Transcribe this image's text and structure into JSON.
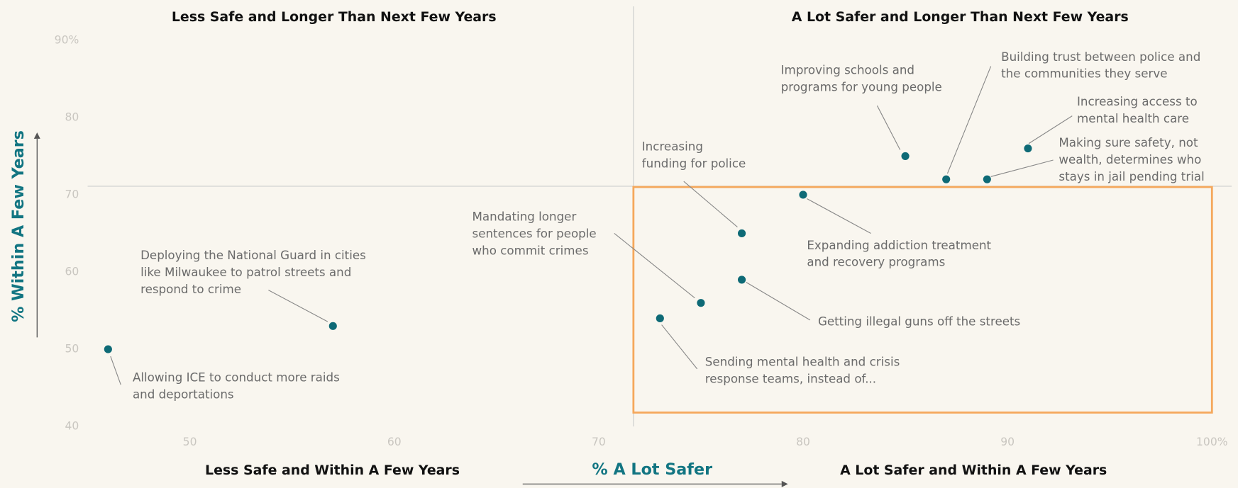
{
  "chart_data": {
    "type": "scatter",
    "x_label": "% A Lot Safer",
    "y_label": "% Within A Few Years",
    "quadrant_titles": [
      "Less Safe and Longer Than Next Few Years",
      "A Lot Safer and Longer Than Next Few Years",
      "Less Safe and Within A Few Years",
      "A Lot Safer and Within A Few Years"
    ],
    "x": [
      46,
      57,
      73,
      75,
      77,
      77,
      80,
      85,
      87,
      89,
      91
    ],
    "values": [
      50,
      53,
      54,
      56,
      59,
      65,
      70,
      75,
      72,
      72,
      76
    ],
    "labels": [
      [
        "Allowing ICE to conduct more raids",
        "and deportations"
      ],
      [
        "Deploying the National Guard in cities",
        "like Milwaukee to patrol streets and",
        "respond to crime"
      ],
      [
        "Sending mental health and crisis",
        "response teams, instead of..."
      ],
      [
        "Mandating longer",
        "sentences for people",
        "who commit crimes"
      ],
      [
        "Getting illegal guns off the streets"
      ],
      [
        "Increasing",
        "funding for police"
      ],
      [
        "Expanding addiction treatment",
        "and recovery programs"
      ],
      [
        "Improving schools and",
        "programs for young people"
      ],
      [
        "Building trust between police and",
        "the communities they serve"
      ],
      [
        "Making sure safety, not",
        "wealth, determines who",
        "stays in jail pending trial"
      ],
      [
        "Increasing access to",
        "mental health care"
      ]
    ],
    "color": "#0e6a76",
    "xlim": [
      45,
      100
    ],
    "ylim": [
      40,
      95
    ],
    "xticks": [
      50,
      60,
      70,
      80,
      90,
      {
        "value": 100,
        "label": "100%"
      }
    ],
    "yticks": [
      40,
      50,
      60,
      70,
      80,
      {
        "value": 90,
        "label": "90%"
      }
    ],
    "quadrant_x": 71.7,
    "quadrant_y": 71.1,
    "highlight": {
      "xlim": [
        71.7,
        100
      ],
      "ylim": [
        41.8,
        71
      ],
      "color": "#f5a85c"
    }
  }
}
